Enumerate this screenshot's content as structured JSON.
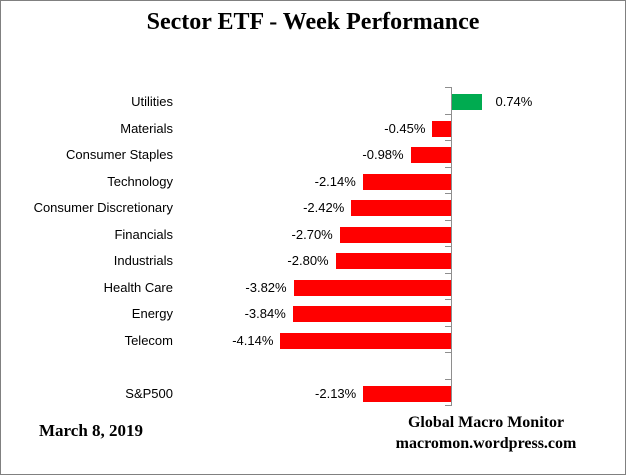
{
  "title": "Sector ETF - Week Performance",
  "footer": {
    "date": "March 8, 2019",
    "source_name": "Global Macro Monitor",
    "source_url": "macromon.wordpress.com"
  },
  "chart_data": {
    "type": "bar",
    "orientation": "horizontal",
    "title": "Sector ETF - Week Performance",
    "categories": [
      "Utilities",
      "Materials",
      "Consumer Staples",
      "Technology",
      "Consumer Discretionary",
      "Financials",
      "Industrials",
      "Health Care",
      "Energy",
      "Telecom",
      "",
      "S&P500"
    ],
    "values": [
      0.74,
      -0.45,
      -0.98,
      -2.14,
      -2.42,
      -2.7,
      -2.8,
      -3.82,
      -3.84,
      -4.14,
      null,
      -2.13
    ],
    "value_labels": [
      "0.74%",
      "-0.45%",
      "-0.98%",
      "-2.14%",
      "-2.42%",
      "-2.70%",
      "-2.80%",
      "-3.82%",
      "-3.84%",
      "-4.14%",
      "",
      "-2.13%"
    ],
    "unit": "%",
    "xlabel": "",
    "ylabel": "",
    "grid": false,
    "legend": false,
    "colors": {
      "positive": "#00AB50",
      "negative": "#FF0000",
      "axis": "#8E8E8E",
      "text": "#000000"
    }
  }
}
